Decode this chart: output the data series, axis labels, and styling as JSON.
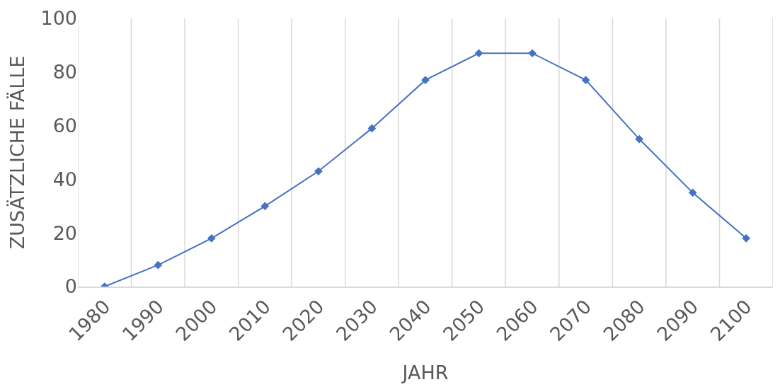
{
  "chart_data": {
    "type": "line",
    "xlabel": "JAHR",
    "ylabel": "ZUSÄTZLICHE FÄLLE",
    "categories": [
      "1980",
      "1990",
      "2000",
      "2010",
      "2020",
      "2030",
      "2040",
      "2050",
      "2060",
      "2070",
      "2080",
      "2090",
      "2100"
    ],
    "series": [
      {
        "color": "#4472c4",
        "values": [
          0,
          8,
          18,
          30,
          43,
          59,
          77,
          87,
          87,
          77,
          55,
          35,
          18
        ]
      }
    ],
    "ylim": [
      0,
      100
    ],
    "yticks": [
      0,
      20,
      40,
      60,
      80,
      100
    ],
    "grid": "x",
    "marker": "diamond",
    "line_style": "solid"
  }
}
